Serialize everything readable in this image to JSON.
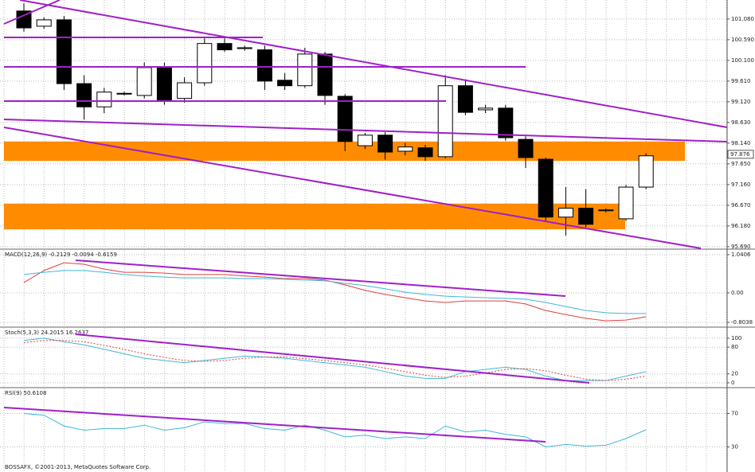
{
  "chart_data": [
    {
      "type": "candlestick",
      "up_color": "#ffffff",
      "down_color": "#000000",
      "grid": true,
      "ylim": [
        95.65,
        101.53
      ],
      "yticks": [
        {
          "value": 101.08,
          "label": "101.080"
        },
        {
          "value": 100.59,
          "label": "100.590"
        },
        {
          "value": 100.1,
          "label": "100.100"
        },
        {
          "value": 99.61,
          "label": "99.610"
        },
        {
          "value": 99.12,
          "label": "99.120"
        },
        {
          "value": 98.63,
          "label": "98.630"
        },
        {
          "value": 98.14,
          "label": "98.140"
        },
        {
          "value": 97.65,
          "label": "97.650"
        },
        {
          "value": 97.16,
          "label": "97.160"
        },
        {
          "value": 96.67,
          "label": "96.670"
        },
        {
          "value": 96.18,
          "label": "96.180"
        },
        {
          "value": 95.69,
          "label": "95.690"
        }
      ],
      "last_price": 97.876,
      "zones": [
        [
          97.72,
          98.18
        ],
        [
          96.1,
          96.71
        ]
      ],
      "zone_color": "#ff8c00",
      "open": [
        101.27,
        100.91,
        101.06,
        99.55,
        99.0,
        99.31,
        99.27,
        99.93,
        99.2,
        99.57,
        100.5,
        100.38,
        100.35,
        99.63,
        99.5,
        100.25,
        99.25,
        98.08,
        98.33,
        97.95,
        98.03,
        97.82,
        99.5,
        98.93,
        98.97,
        98.23,
        97.76,
        96.39,
        96.6,
        96.54,
        96.35,
        97.1
      ],
      "high": [
        101.45,
        101.12,
        101.15,
        99.75,
        99.45,
        99.36,
        100.05,
        100.05,
        99.7,
        100.62,
        100.62,
        100.45,
        100.45,
        99.8,
        100.4,
        100.3,
        99.3,
        98.38,
        98.4,
        98.15,
        98.1,
        99.75,
        99.65,
        99.05,
        99.05,
        98.3,
        97.8,
        97.1,
        97.05,
        96.6,
        97.15,
        97.9
      ],
      "low": [
        100.78,
        100.85,
        99.4,
        98.7,
        98.85,
        99.27,
        99.2,
        99.05,
        99.1,
        99.5,
        100.3,
        100.33,
        99.4,
        99.4,
        99.45,
        99.05,
        97.95,
        98.0,
        97.75,
        97.85,
        97.72,
        97.78,
        98.8,
        98.85,
        98.2,
        97.55,
        96.3,
        95.95,
        96.15,
        96.5,
        96.3,
        97.05
      ],
      "close": [
        100.87,
        101.06,
        99.55,
        99.0,
        99.35,
        99.32,
        99.93,
        99.16,
        99.57,
        100.5,
        100.35,
        100.4,
        99.61,
        99.5,
        100.25,
        99.27,
        98.18,
        98.33,
        97.93,
        98.05,
        97.82,
        99.5,
        98.87,
        98.97,
        98.27,
        97.8,
        96.39,
        96.6,
        96.22,
        96.56,
        97.1,
        97.84
      ]
    },
    {
      "type": "line",
      "title": "MACD(12,26,9) -0.2129 -0.0094 -0.6159",
      "ylim": [
        -0.91,
        1.17
      ],
      "grid": true,
      "yticks": [
        1.0406,
        {
          "value": 0,
          "label": "0.00"
        },
        -0.8038
      ],
      "series": [
        {
          "color": "#e04040",
          "values": [
            0.28,
            0.61,
            0.82,
            0.78,
            0.65,
            0.56,
            0.56,
            0.54,
            0.5,
            0.5,
            0.5,
            0.46,
            0.43,
            0.39,
            0.39,
            0.35,
            0.22,
            0.07,
            -0.04,
            -0.13,
            -0.22,
            -0.26,
            -0.22,
            -0.22,
            -0.22,
            -0.3,
            -0.48,
            -0.59,
            -0.69,
            -0.76,
            -0.74,
            -0.65
          ]
        },
        {
          "color": "#40b8d8",
          "values": [
            0.5,
            0.56,
            0.61,
            0.61,
            0.56,
            0.5,
            0.46,
            0.43,
            0.41,
            0.41,
            0.41,
            0.39,
            0.39,
            0.37,
            0.35,
            0.33,
            0.26,
            0.2,
            0.11,
            0.02,
            -0.04,
            -0.09,
            -0.11,
            -0.13,
            -0.15,
            -0.17,
            -0.26,
            -0.37,
            -0.48,
            -0.54,
            -0.56,
            -0.56
          ]
        }
      ]
    },
    {
      "type": "line",
      "title": "Stoch(5,3,3) 24.2015 16.2637",
      "ylim": [
        -9,
        123
      ],
      "grid": true,
      "yticks": [
        100,
        80,
        20,
        0
      ],
      "series": [
        {
          "color": "#40b8d8",
          "values": [
            95,
            100,
            92,
            85,
            75,
            65,
            55,
            50,
            45,
            50,
            55,
            60,
            58,
            55,
            50,
            45,
            40,
            35,
            25,
            15,
            10,
            10,
            25,
            30,
            35,
            30,
            15,
            5,
            5,
            5,
            15,
            25
          ]
        },
        {
          "color": "#e04040",
          "dashed": true,
          "values": [
            90,
            95,
            95,
            92,
            84,
            75,
            65,
            57,
            50,
            48,
            50,
            55,
            58,
            58,
            54,
            50,
            45,
            40,
            33,
            25,
            17,
            12,
            15,
            22,
            30,
            32,
            27,
            17,
            8,
            5,
            8,
            15
          ]
        }
      ]
    },
    {
      "type": "line",
      "title": "RSI(9) 50.6108",
      "ylim": [
        0,
        100
      ],
      "grid": true,
      "yticks": [
        70,
        30
      ],
      "series": [
        {
          "color": "#40b8d8",
          "values": [
            70,
            68,
            55,
            50,
            52,
            52,
            56,
            50,
            53,
            60,
            58,
            58,
            52,
            50,
            56,
            50,
            42,
            44,
            40,
            42,
            40,
            55,
            48,
            50,
            45,
            42,
            30,
            33,
            31,
            32,
            40,
            50.6
          ]
        }
      ]
    }
  ],
  "footer": "BOSSAFX, ©2001-2013, MetaQuotes Software Corp."
}
